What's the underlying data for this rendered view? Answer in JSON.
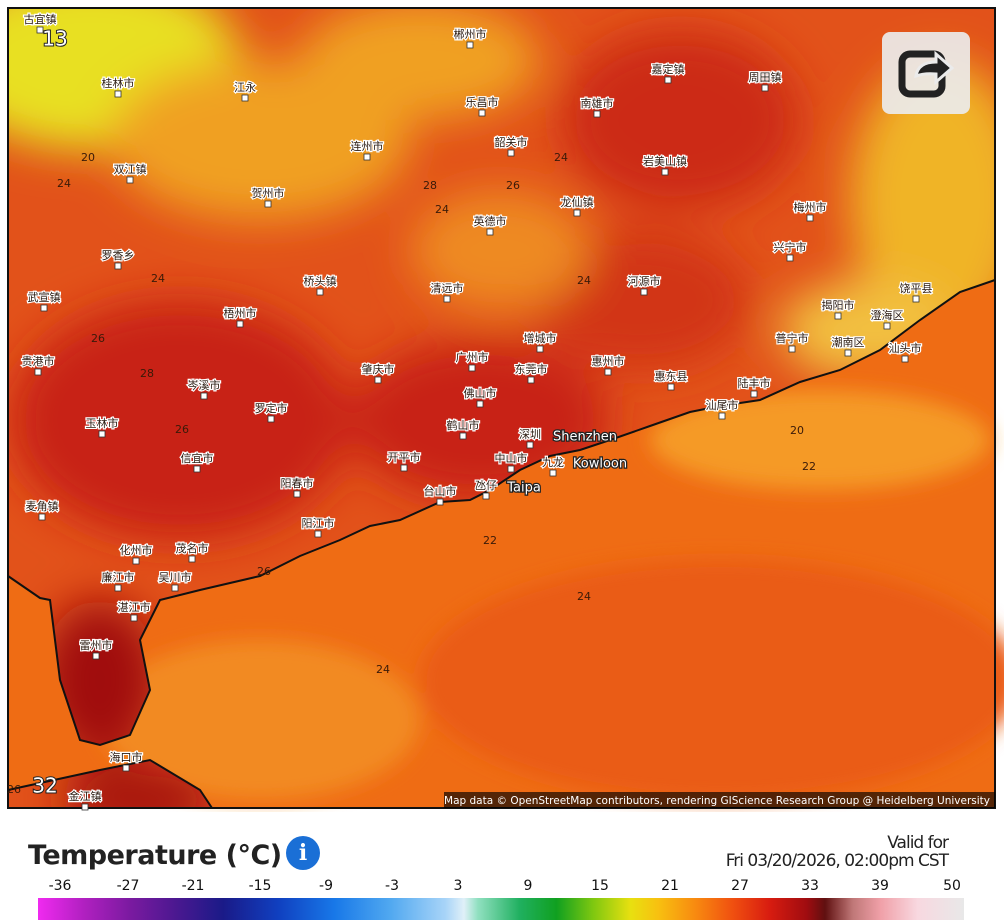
{
  "map": {
    "cities": [
      "古宜镇",
      "郴州市",
      "桂林市",
      "江永",
      "乐昌市",
      "南雄市",
      "嘉定镇",
      "周田镇",
      "连州市",
      "韶关市",
      "岩美山镇",
      "双江镇",
      "贺州市",
      "英德市",
      "龙仙镇",
      "梅州市",
      "兴宁市",
      "罗香乡",
      "桥头镇",
      "清远市",
      "河源市",
      "揭阳市",
      "饶平县",
      "武宣镇",
      "梧州市",
      "澄海区",
      "增城市",
      "普宁市",
      "潮南区",
      "汕头市",
      "贵港市",
      "广州市",
      "肇庆市",
      "东莞市",
      "惠州市",
      "惠东县",
      "岑溪市",
      "佛山市",
      "陆丰市",
      "罗定市",
      "汕尾市",
      "玉林市",
      "鹤山市",
      "深圳",
      "Shenzhen",
      "信宜市",
      "开平市",
      "中山市",
      "九龙",
      "Kowloon",
      "阳春市",
      "台山市",
      "氹仔",
      "Taipa",
      "麦角镇",
      "阳江市",
      "化州市",
      "茂名市",
      "廉江市",
      "吴川市",
      "湛江市",
      "雷州市",
      "海口市",
      "金江镇"
    ],
    "contours": [
      "13",
      "20",
      "24",
      "28",
      "26",
      "24",
      "24",
      "24",
      "24",
      "26",
      "28",
      "26",
      "20",
      "22",
      "22",
      "24",
      "26",
      "24",
      "32",
      "26"
    ],
    "attribution": "Map data © OpenStreetMap contributors, rendering GIScience Research Group @ Heidelberg University"
  },
  "legend": {
    "title": "Temperature (°C)",
    "info": "i",
    "valid_label": "Valid for",
    "valid_time": "Fri 03/20/2026, 02:00pm CST",
    "ticks": [
      -36,
      -27,
      -21,
      -15,
      -9,
      -3,
      3,
      9,
      15,
      21,
      27,
      33,
      39,
      50
    ]
  }
}
